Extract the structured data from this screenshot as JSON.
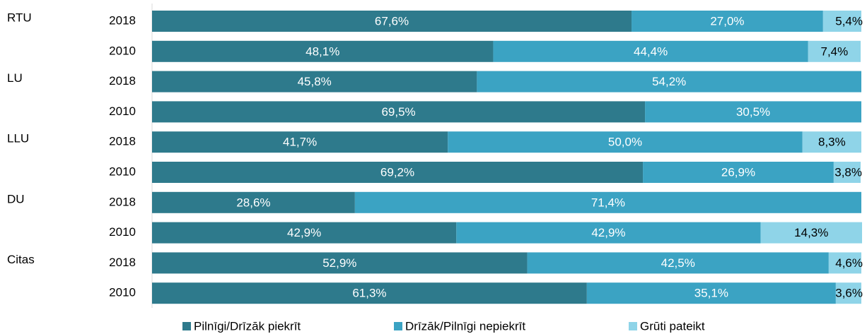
{
  "chart_data": {
    "type": "stacked-bar-horizontal",
    "groups": [
      "RTU",
      "LU",
      "LLU",
      "DU",
      "Citas"
    ],
    "categories": [
      "2018",
      "2010",
      "2018",
      "2010",
      "2018",
      "2010",
      "2018",
      "2010",
      "2018",
      "2010"
    ],
    "xlim": [
      0,
      100
    ],
    "series": [
      {
        "name": "Pilnīgi/Drīzāk piekrīt",
        "color": "#2e7a8c",
        "values": [
          67.6,
          48.1,
          45.8,
          69.5,
          41.7,
          69.2,
          28.6,
          42.9,
          52.9,
          61.3
        ],
        "value_labels": [
          "67,6%",
          "48,1%",
          "45,8%",
          "69,5%",
          "41,7%",
          "69,2%",
          "28,6%",
          "42,9%",
          "52,9%",
          "61,3%"
        ]
      },
      {
        "name": "Drīzāk/Pilnīgi nepiekrīt",
        "color": "#3ba3c3",
        "values": [
          27.0,
          44.4,
          54.2,
          30.5,
          50.0,
          26.9,
          71.4,
          42.9,
          42.5,
          35.1
        ],
        "value_labels": [
          "27,0%",
          "44,4%",
          "54,2%",
          "30,5%",
          "50,0%",
          "26,9%",
          "71,4%",
          "42,9%",
          "42,5%",
          "35,1%"
        ]
      },
      {
        "name": "Grūti pateikt",
        "color": "#8fd4e8",
        "values": [
          5.4,
          7.4,
          null,
          null,
          8.3,
          3.8,
          null,
          14.3,
          4.6,
          3.6
        ],
        "value_labels": [
          "5,4%",
          "7,4%",
          null,
          null,
          "8,3%",
          "3,8%",
          null,
          "14,3%",
          "4,6%",
          "3,6%"
        ]
      }
    ],
    "legend": "bottom"
  }
}
